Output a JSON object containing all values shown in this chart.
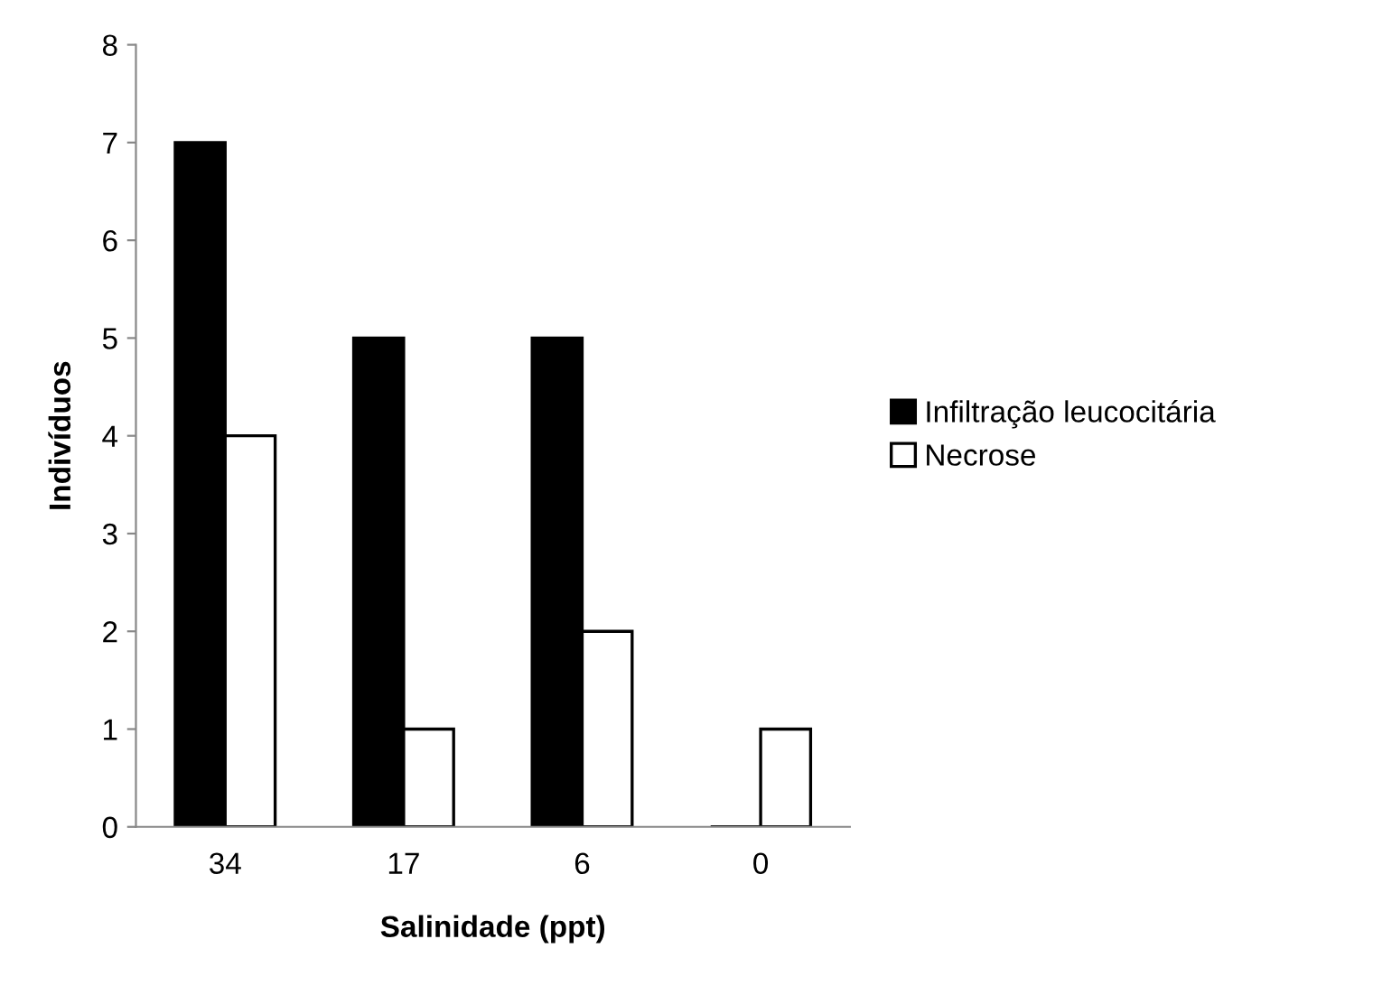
{
  "chart_data": {
    "type": "bar",
    "xlabel": "Salinidade (ppt)",
    "ylabel": "Indivíduos",
    "categories": [
      "34",
      "17",
      "6",
      "0"
    ],
    "series": [
      {
        "name": "Infiltração leucocitária",
        "color": "#000000",
        "values": [
          7,
          5,
          5,
          0
        ]
      },
      {
        "name": "Necrose",
        "color": "#ffffff",
        "values": [
          4,
          1,
          2,
          1
        ]
      }
    ],
    "ylim": [
      0,
      8
    ],
    "yticks": [
      0,
      1,
      2,
      3,
      4,
      5,
      6,
      7,
      8
    ],
    "grid": false,
    "legend": "right"
  }
}
